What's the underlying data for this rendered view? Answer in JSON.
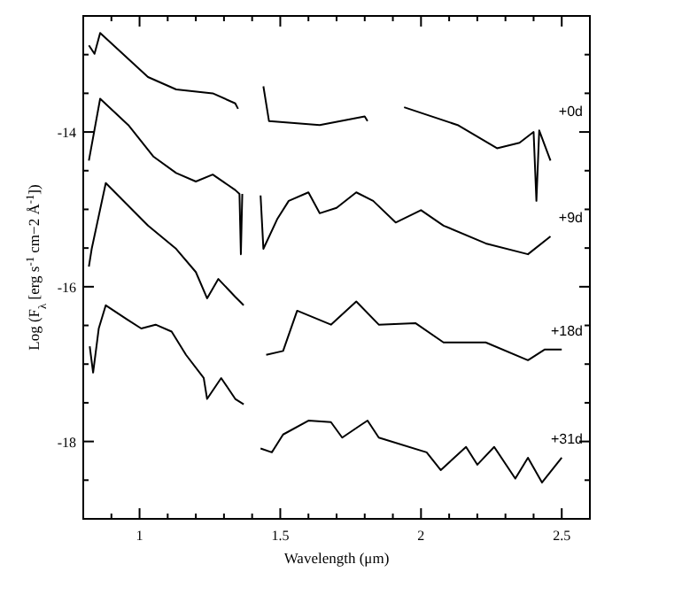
{
  "chart_data": {
    "type": "line",
    "xlabel": "Wavelength (μm)",
    "ylabel": "Log (F$_{λ}$ [erg s$^{-1}$ cm−2 Å$^{-1}$])",
    "xlim": [
      0.8,
      2.6
    ],
    "ylim": [
      -19,
      -12.5
    ],
    "xticks": [
      {
        "value": 0.8,
        "label": null
      },
      {
        "value": 0.9,
        "label": null
      },
      1,
      {
        "value": 1.1,
        "label": null
      },
      {
        "value": 1.2,
        "label": null
      },
      {
        "value": 1.3,
        "label": null
      },
      {
        "value": 1.4,
        "label": null
      },
      1.5,
      {
        "value": 1.6,
        "label": null
      },
      {
        "value": 1.7,
        "label": null
      },
      {
        "value": 1.8,
        "label": null
      },
      {
        "value": 1.9,
        "label": null
      },
      2,
      {
        "value": 2.1,
        "label": null
      },
      {
        "value": 2.2,
        "label": null
      },
      {
        "value": 2.3,
        "label": null
      },
      {
        "value": 2.4,
        "label": null
      },
      2.5
    ],
    "yticks": [
      {
        "value": -19,
        "label": null
      },
      -18,
      {
        "value": -17.5,
        "label": null
      },
      {
        "value": -17,
        "label": null
      },
      {
        "value": -16.5,
        "label": null
      },
      -16,
      {
        "value": -15.5,
        "label": null
      },
      {
        "value": -15,
        "label": null
      },
      {
        "value": -14.5,
        "label": null
      },
      -14,
      {
        "value": -13.5,
        "label": null
      },
      {
        "value": -13,
        "label": null
      },
      {
        "value": -18.5,
        "label": null
      }
    ],
    "grid": false,
    "legend": "right",
    "marker": "none",
    "line_style": "solid",
    "series": [
      {
        "name": "+0d",
        "color": "#000000",
        "x": [
          0.82,
          0.84,
          0.86,
          1.03,
          1.13,
          1.26,
          1.34,
          1.35,
          1.4,
          1.44,
          1.46,
          1.64,
          1.8,
          1.81,
          1.88,
          1.94,
          2.13,
          2.27,
          2.35,
          2.4,
          2.41,
          2.42,
          2.46
        ],
        "values": [
          -12.88,
          -12.99,
          -12.72,
          -13.29,
          -13.45,
          -13.5,
          -13.63,
          -13.7,
          null,
          -13.41,
          -13.86,
          -13.91,
          -13.8,
          -13.86,
          null,
          -13.68,
          -13.91,
          -14.21,
          -14.14,
          -14.0,
          -14.89,
          -13.98,
          -14.37
        ]
      },
      {
        "name": "+9d",
        "color": "#000000",
        "x": [
          0.82,
          0.86,
          0.96,
          1.05,
          1.13,
          1.2,
          1.26,
          1.34,
          1.355,
          1.36,
          1.365,
          1.4,
          1.43,
          1.44,
          1.49,
          1.53,
          1.6,
          1.64,
          1.7,
          1.77,
          1.83,
          1.91,
          2.0,
          2.08,
          2.23,
          2.38,
          2.46
        ],
        "values": [
          -14.37,
          -13.57,
          -13.91,
          -14.32,
          -14.53,
          -14.64,
          -14.55,
          -14.75,
          -14.8,
          -15.58,
          -14.8,
          null,
          -14.82,
          -15.51,
          -15.12,
          -14.89,
          -14.78,
          -15.05,
          -14.98,
          -14.78,
          -14.89,
          -15.17,
          -15.01,
          -15.21,
          -15.44,
          -15.58,
          -15.35
        ]
      },
      {
        "name": "+18d",
        "color": "#000000",
        "x": [
          0.82,
          0.83,
          0.88,
          1.03,
          1.13,
          1.2,
          1.24,
          1.28,
          1.34,
          1.37,
          1.4,
          1.45,
          1.51,
          1.56,
          1.68,
          1.77,
          1.85,
          1.98,
          2.08,
          2.23,
          2.38,
          2.44,
          2.5
        ],
        "values": [
          -15.74,
          -15.51,
          -14.66,
          -15.21,
          -15.51,
          -15.81,
          -16.15,
          -15.9,
          -16.13,
          -16.24,
          null,
          -16.88,
          -16.83,
          -16.31,
          -16.49,
          -16.19,
          -16.49,
          -16.47,
          -16.72,
          -16.72,
          -16.95,
          -16.81,
          -16.81
        ]
      },
      {
        "name": "+31d",
        "color": "#000000",
        "x": [
          0.823,
          0.835,
          0.855,
          0.88,
          0.955,
          1.006,
          1.057,
          1.114,
          1.165,
          1.228,
          1.24,
          1.29,
          1.34,
          1.37,
          1.4,
          1.43,
          1.47,
          1.51,
          1.6,
          1.68,
          1.72,
          1.785,
          1.81,
          1.85,
          2.02,
          2.07,
          2.16,
          2.2,
          2.26,
          2.335,
          2.38,
          2.43,
          2.5
        ],
        "values": [
          -16.77,
          -17.11,
          -16.54,
          -16.24,
          -16.42,
          -16.54,
          -16.49,
          -16.58,
          -16.88,
          -17.18,
          -17.45,
          -17.18,
          -17.45,
          -17.52,
          null,
          -18.09,
          -18.14,
          -17.91,
          -17.73,
          -17.75,
          -17.95,
          -17.79,
          -17.73,
          -17.95,
          -18.14,
          -18.37,
          -18.07,
          -18.3,
          -18.07,
          -18.48,
          -18.21,
          -18.53,
          -18.21
        ]
      }
    ]
  }
}
